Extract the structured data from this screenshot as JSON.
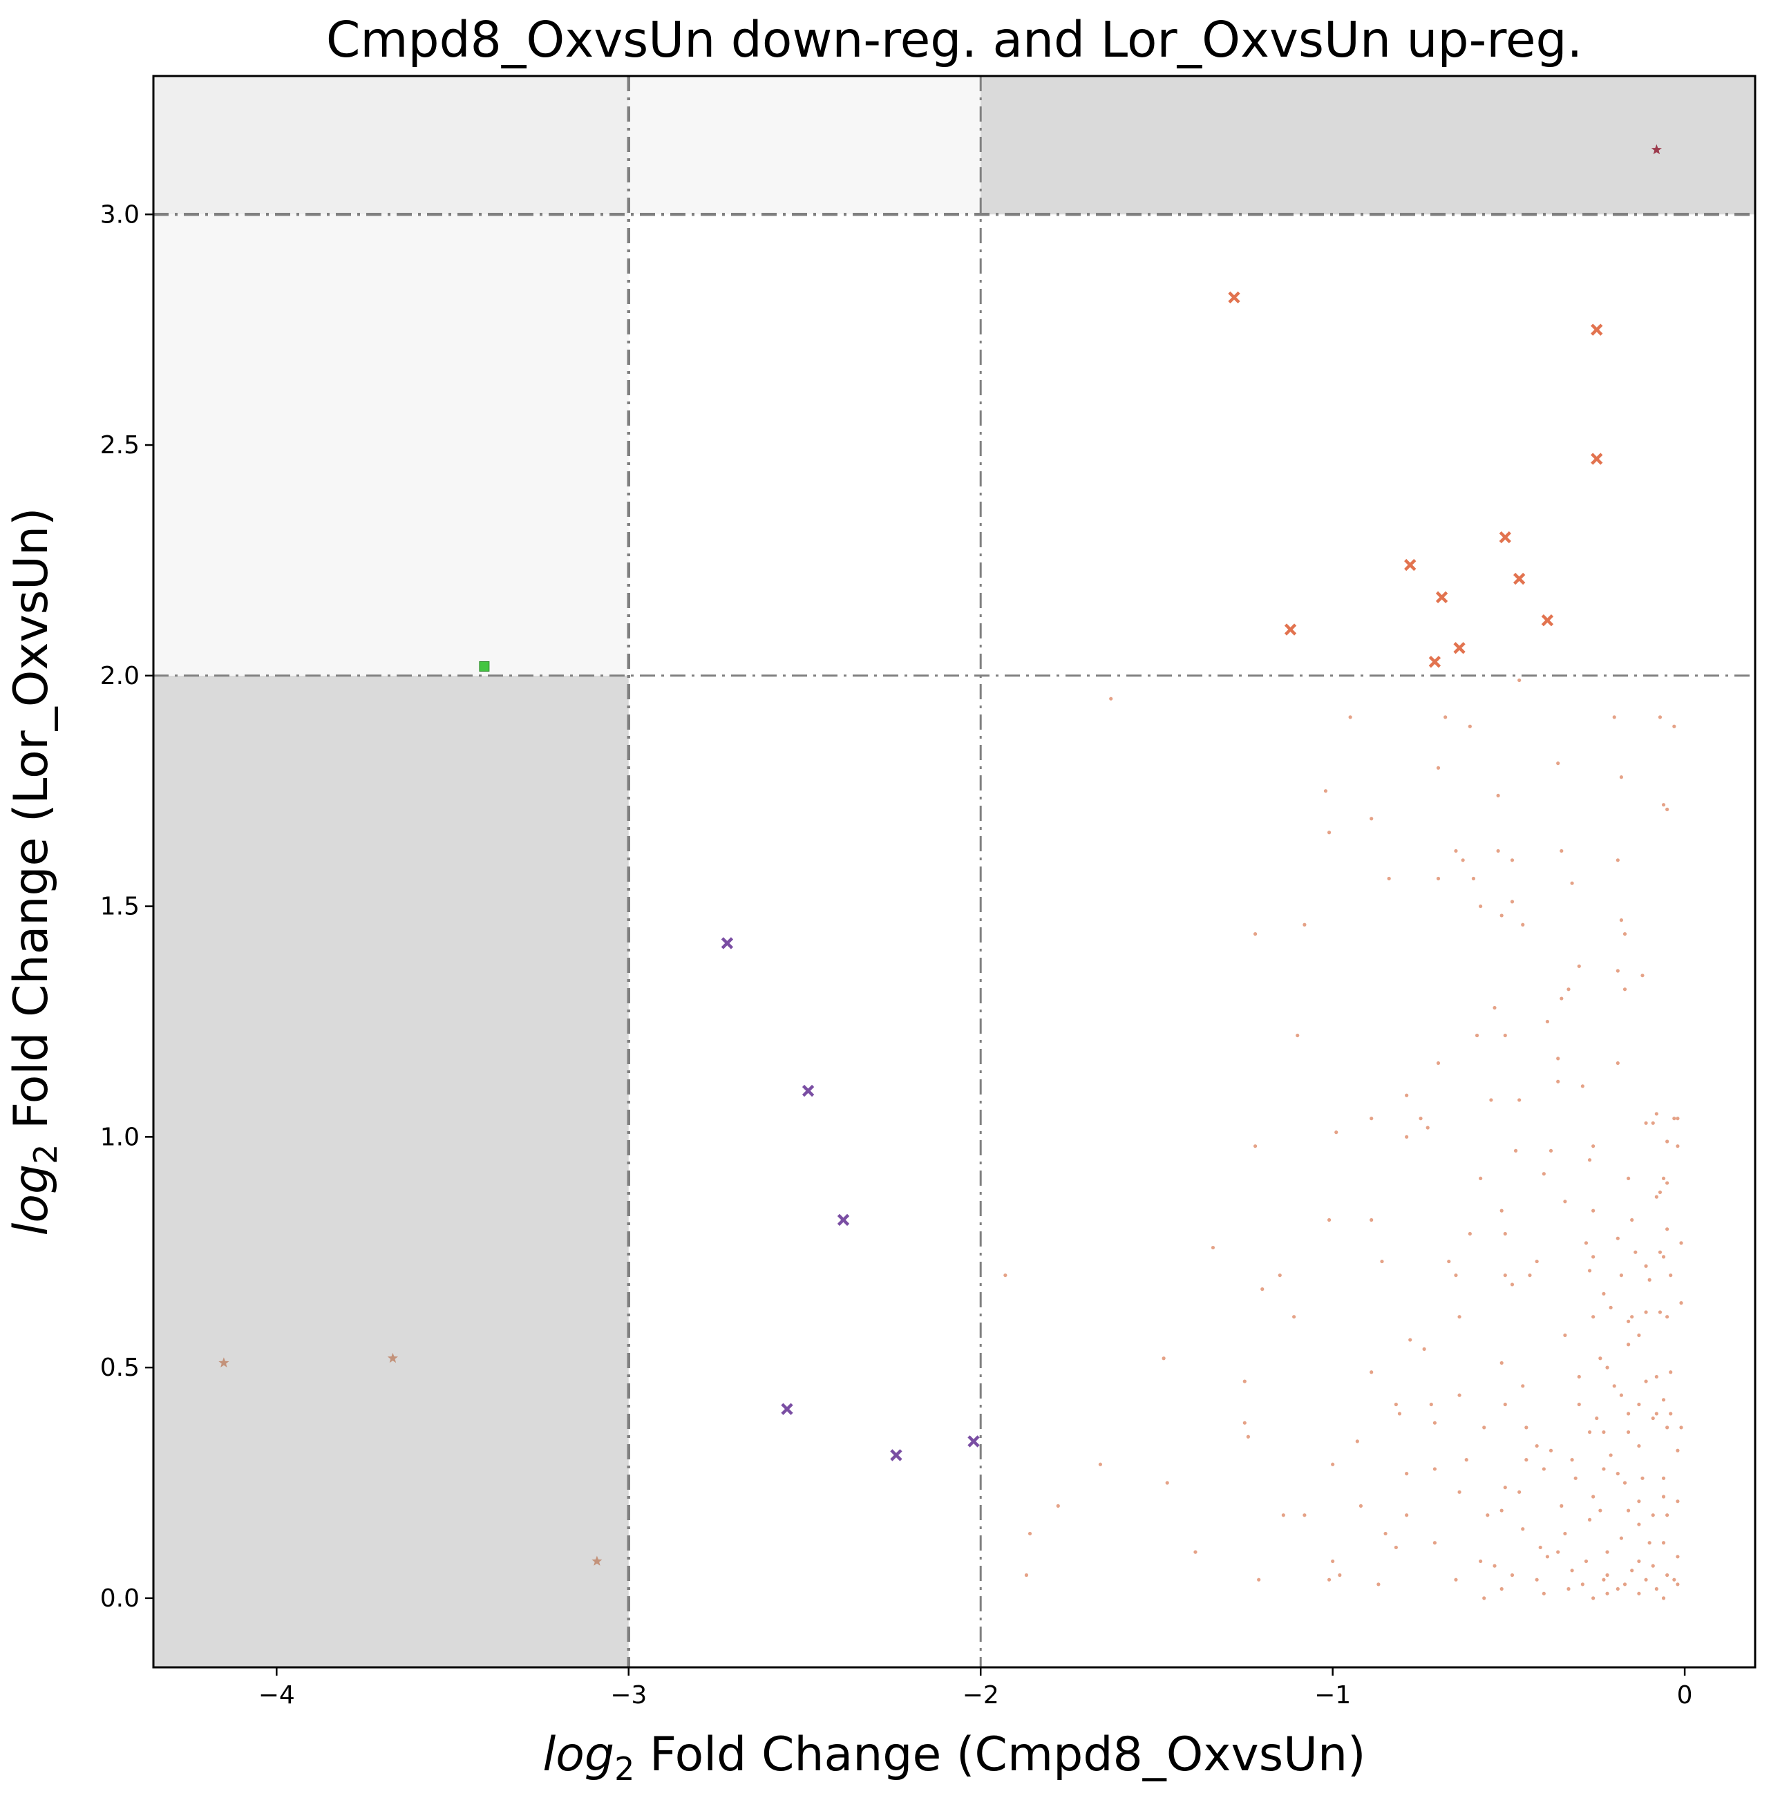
{
  "chart_data": {
    "type": "scatter",
    "title": "Cmpd8_OxvsUn down-reg. and Lor_OxvsUn up-reg.",
    "xlabel": {
      "prefix": "log",
      "sub": "2",
      "rest": " Fold Change (Cmpd8_OxvsUn)"
    },
    "ylabel": {
      "prefix": "log",
      "sub": "2",
      "rest": " Fold Change (Lor_OxvsUn)"
    },
    "xlim": [
      -4.35,
      0.2
    ],
    "ylim": [
      -0.15,
      3.3
    ],
    "xticks": [
      -4,
      -3,
      -2,
      -1,
      0
    ],
    "xtick_labels": [
      "−4",
      "−3",
      "−2",
      "−1",
      "0"
    ],
    "yticks": [
      0.0,
      0.5,
      1.0,
      1.5,
      2.0,
      2.5,
      3.0
    ],
    "ytick_labels": [
      "0.0",
      "0.5",
      "1.0",
      "1.5",
      "2.0",
      "2.5",
      "3.0"
    ],
    "grid": false,
    "threshold_lines": {
      "x": [
        -3,
        -2
      ],
      "y": [
        2,
        3
      ]
    },
    "regions": [
      {
        "x": [
          -4.35,
          -3
        ],
        "y": [
          -0.15,
          2
        ],
        "color": "#dadada"
      },
      {
        "x": [
          -4.35,
          -3
        ],
        "y": [
          2,
          3
        ],
        "color": "#f7f7f7"
      },
      {
        "x": [
          -4.35,
          -3
        ],
        "y": [
          3,
          3.3
        ],
        "color": "#efefef"
      },
      {
        "x": [
          -3,
          -2
        ],
        "y": [
          3,
          3.3
        ],
        "color": "#f7f7f7"
      },
      {
        "x": [
          -2,
          0.2
        ],
        "y": [
          3,
          3.3
        ],
        "color": "#dadada"
      }
    ],
    "series": [
      {
        "marker": "square",
        "color": "#44c541",
        "points": [
          [
            -3.41,
            2.02
          ]
        ]
      },
      {
        "marker": "star",
        "color": "#c3927a",
        "points": [
          [
            -4.15,
            0.51
          ],
          [
            -3.67,
            0.52
          ],
          [
            -3.09,
            0.08
          ]
        ]
      },
      {
        "marker": "x",
        "color": "#7a4ea3",
        "points": [
          [
            -2.72,
            1.42
          ],
          [
            -2.49,
            1.1
          ],
          [
            -2.39,
            0.82
          ],
          [
            -2.55,
            0.41
          ],
          [
            -2.24,
            0.31
          ],
          [
            -2.02,
            0.34
          ]
        ]
      },
      {
        "marker": "x",
        "color": "#e2734f",
        "points": [
          [
            -1.28,
            2.82
          ],
          [
            -0.25,
            2.75
          ],
          [
            -0.25,
            2.47
          ],
          [
            -0.51,
            2.3
          ],
          [
            -0.78,
            2.24
          ],
          [
            -0.47,
            2.21
          ],
          [
            -0.69,
            2.17
          ],
          [
            -0.39,
            2.12
          ],
          [
            -1.12,
            2.1
          ],
          [
            -0.64,
            2.06
          ],
          [
            -0.71,
            2.03
          ]
        ]
      },
      {
        "marker": "star",
        "color": "#9c3a4c",
        "points": [
          [
            -0.08,
            3.14
          ]
        ]
      },
      {
        "marker": "dot",
        "color": "#e09272",
        "points": [
          [
            -1.63,
            1.95
          ],
          [
            -0.95,
            1.91
          ],
          [
            -0.68,
            1.91
          ],
          [
            -0.61,
            1.89
          ],
          [
            -0.47,
            1.99
          ],
          [
            -0.2,
            1.91
          ],
          [
            -0.07,
            1.91
          ],
          [
            -0.03,
            1.89
          ],
          [
            -0.36,
            1.81
          ],
          [
            -0.18,
            1.78
          ],
          [
            -0.7,
            1.8
          ],
          [
            -1.02,
            1.75
          ],
          [
            -0.53,
            1.74
          ],
          [
            -0.06,
            1.72
          ],
          [
            -0.05,
            1.71
          ],
          [
            -0.89,
            1.69
          ],
          [
            -1.01,
            1.66
          ],
          [
            -0.65,
            1.62
          ],
          [
            -0.63,
            1.6
          ],
          [
            -0.53,
            1.62
          ],
          [
            -0.35,
            1.62
          ],
          [
            -0.49,
            1.6
          ],
          [
            -0.19,
            1.6
          ],
          [
            -0.84,
            1.56
          ],
          [
            -0.7,
            1.56
          ],
          [
            -0.6,
            1.56
          ],
          [
            -0.32,
            1.55
          ],
          [
            -0.49,
            1.51
          ],
          [
            -0.58,
            1.5
          ],
          [
            -0.52,
            1.48
          ],
          [
            -0.46,
            1.46
          ],
          [
            -0.18,
            1.47
          ],
          [
            -1.08,
            1.46
          ],
          [
            -1.22,
            1.44
          ],
          [
            -0.17,
            1.44
          ],
          [
            -0.3,
            1.37
          ],
          [
            -0.19,
            1.36
          ],
          [
            -0.12,
            1.35
          ],
          [
            -0.17,
            1.32
          ],
          [
            -0.35,
            1.3
          ],
          [
            -0.33,
            1.32
          ],
          [
            -0.54,
            1.28
          ],
          [
            -0.39,
            1.25
          ],
          [
            -1.1,
            1.22
          ],
          [
            -0.51,
            1.22
          ],
          [
            -0.59,
            1.22
          ],
          [
            -0.36,
            1.17
          ],
          [
            -0.19,
            1.16
          ],
          [
            -0.7,
            1.16
          ],
          [
            -0.36,
            1.12
          ],
          [
            -0.29,
            1.11
          ],
          [
            -0.79,
            1.09
          ],
          [
            -0.55,
            1.08
          ],
          [
            -0.47,
            1.08
          ],
          [
            -0.08,
            1.05
          ],
          [
            -0.03,
            1.04
          ],
          [
            -0.02,
            1.04
          ],
          [
            -0.09,
            1.03
          ],
          [
            -0.75,
            1.04
          ],
          [
            -0.73,
            1.02
          ],
          [
            -0.89,
            1.04
          ],
          [
            -0.11,
            1.03
          ],
          [
            -0.99,
            1.01
          ],
          [
            -0.79,
            1.0
          ],
          [
            -1.22,
            0.98
          ],
          [
            -0.05,
            0.99
          ],
          [
            -0.02,
            0.98
          ],
          [
            -0.48,
            0.97
          ],
          [
            -0.38,
            0.97
          ],
          [
            -0.26,
            0.98
          ],
          [
            -0.27,
            0.95
          ],
          [
            -0.4,
            0.92
          ],
          [
            -0.16,
            0.91
          ],
          [
            -0.06,
            0.91
          ],
          [
            -0.05,
            0.9
          ],
          [
            -0.07,
            0.88
          ],
          [
            -0.08,
            0.87
          ],
          [
            -0.58,
            0.91
          ],
          [
            -0.34,
            0.86
          ],
          [
            -0.26,
            0.84
          ],
          [
            -0.52,
            0.84
          ],
          [
            -1.01,
            0.82
          ],
          [
            -0.89,
            0.82
          ],
          [
            -0.15,
            0.82
          ],
          [
            -0.05,
            0.8
          ],
          [
            -0.19,
            0.78
          ],
          [
            -0.28,
            0.77
          ],
          [
            -0.51,
            0.79
          ],
          [
            -0.61,
            0.79
          ],
          [
            -0.01,
            0.77
          ],
          [
            -1.34,
            0.76
          ],
          [
            -0.07,
            0.75
          ],
          [
            -0.06,
            0.74
          ],
          [
            -0.14,
            0.75
          ],
          [
            -0.26,
            0.74
          ],
          [
            -0.11,
            0.72
          ],
          [
            -0.42,
            0.73
          ],
          [
            -0.67,
            0.73
          ],
          [
            -0.86,
            0.73
          ],
          [
            -0.27,
            0.71
          ],
          [
            -0.04,
            0.7
          ],
          [
            -1.93,
            0.7
          ],
          [
            -1.15,
            0.7
          ],
          [
            -0.65,
            0.7
          ],
          [
            -0.51,
            0.7
          ],
          [
            -0.44,
            0.7
          ],
          [
            -0.18,
            0.7
          ],
          [
            -0.1,
            0.69
          ],
          [
            -1.2,
            0.67
          ],
          [
            -0.49,
            0.68
          ],
          [
            -0.23,
            0.66
          ],
          [
            -0.01,
            0.64
          ],
          [
            -0.15,
            0.61
          ],
          [
            -0.11,
            0.62
          ],
          [
            -0.07,
            0.62
          ],
          [
            -0.05,
            0.61
          ],
          [
            -0.16,
            0.6
          ],
          [
            -0.26,
            0.61
          ],
          [
            -0.21,
            0.63
          ],
          [
            -1.11,
            0.61
          ],
          [
            -0.64,
            0.61
          ],
          [
            -0.34,
            0.57
          ],
          [
            -0.13,
            0.57
          ],
          [
            -0.78,
            0.56
          ],
          [
            -0.16,
            0.55
          ],
          [
            -0.74,
            0.54
          ],
          [
            -1.48,
            0.52
          ],
          [
            -0.24,
            0.52
          ],
          [
            -0.52,
            0.51
          ],
          [
            -0.22,
            0.5
          ],
          [
            -0.08,
            0.48
          ],
          [
            -0.11,
            0.47
          ],
          [
            -0.89,
            0.49
          ],
          [
            -0.04,
            0.49
          ],
          [
            -1.25,
            0.47
          ],
          [
            -0.3,
            0.48
          ],
          [
            -0.2,
            0.46
          ],
          [
            -0.46,
            0.46
          ],
          [
            -0.18,
            0.44
          ],
          [
            -0.64,
            0.44
          ],
          [
            -0.72,
            0.42
          ],
          [
            -0.82,
            0.42
          ],
          [
            -0.06,
            0.43
          ],
          [
            -0.13,
            0.42
          ],
          [
            -0.51,
            0.42
          ],
          [
            -0.3,
            0.42
          ],
          [
            -0.81,
            0.4
          ],
          [
            -0.16,
            0.4
          ],
          [
            -0.08,
            0.4
          ],
          [
            -0.04,
            0.4
          ],
          [
            -0.25,
            0.39
          ],
          [
            -0.09,
            0.39
          ],
          [
            -1.25,
            0.38
          ],
          [
            -0.71,
            0.38
          ],
          [
            -0.45,
            0.37
          ],
          [
            -0.57,
            0.37
          ],
          [
            -0.05,
            0.37
          ],
          [
            -0.01,
            0.37
          ],
          [
            -0.27,
            0.36
          ],
          [
            -0.16,
            0.36
          ],
          [
            -0.23,
            0.36
          ],
          [
            -1.24,
            0.35
          ],
          [
            -0.93,
            0.34
          ],
          [
            -0.42,
            0.33
          ],
          [
            -0.13,
            0.33
          ],
          [
            -0.21,
            0.31
          ],
          [
            -0.02,
            0.32
          ],
          [
            -0.38,
            0.32
          ],
          [
            -0.32,
            0.3
          ],
          [
            -1.0,
            0.29
          ],
          [
            -0.62,
            0.3
          ],
          [
            -0.45,
            0.3
          ],
          [
            -0.71,
            0.28
          ],
          [
            -0.4,
            0.28
          ],
          [
            -0.23,
            0.28
          ],
          [
            -1.66,
            0.29
          ],
          [
            -0.79,
            0.27
          ],
          [
            -0.19,
            0.27
          ],
          [
            -0.12,
            0.26
          ],
          [
            -0.06,
            0.26
          ],
          [
            -0.31,
            0.26
          ],
          [
            -0.17,
            0.25
          ],
          [
            -0.51,
            0.24
          ],
          [
            -1.47,
            0.25
          ],
          [
            -0.64,
            0.23
          ],
          [
            -0.47,
            0.23
          ],
          [
            -0.26,
            0.22
          ],
          [
            -0.06,
            0.22
          ],
          [
            -0.13,
            0.21
          ],
          [
            -0.02,
            0.21
          ],
          [
            -1.78,
            0.2
          ],
          [
            -0.92,
            0.2
          ],
          [
            -0.52,
            0.19
          ],
          [
            -0.35,
            0.2
          ],
          [
            -0.16,
            0.19
          ],
          [
            -0.24,
            0.19
          ],
          [
            -0.09,
            0.18
          ],
          [
            -0.05,
            0.18
          ],
          [
            -1.14,
            0.18
          ],
          [
            -1.08,
            0.18
          ],
          [
            -0.79,
            0.18
          ],
          [
            -0.56,
            0.18
          ],
          [
            -0.27,
            0.17
          ],
          [
            -0.13,
            0.16
          ],
          [
            -0.46,
            0.15
          ],
          [
            -0.85,
            0.14
          ],
          [
            -0.34,
            0.14
          ],
          [
            -0.18,
            0.13
          ],
          [
            -1.86,
            0.14
          ],
          [
            -0.1,
            0.12
          ],
          [
            -0.06,
            0.12
          ],
          [
            -0.71,
            0.12
          ],
          [
            -0.41,
            0.11
          ],
          [
            -0.82,
            0.11
          ],
          [
            -0.22,
            0.1
          ],
          [
            -1.39,
            0.1
          ],
          [
            -0.36,
            0.1
          ],
          [
            -0.39,
            0.09
          ],
          [
            -0.02,
            0.09
          ],
          [
            -0.58,
            0.08
          ],
          [
            -1.0,
            0.08
          ],
          [
            -0.28,
            0.08
          ],
          [
            -0.13,
            0.08
          ],
          [
            -0.54,
            0.07
          ],
          [
            -0.09,
            0.07
          ],
          [
            -0.32,
            0.06
          ],
          [
            -0.15,
            0.06
          ],
          [
            -0.98,
            0.05
          ],
          [
            -1.87,
            0.05
          ],
          [
            -0.49,
            0.05
          ],
          [
            -0.22,
            0.05
          ],
          [
            -0.05,
            0.05
          ],
          [
            -0.65,
            0.04
          ],
          [
            -1.01,
            0.04
          ],
          [
            -1.21,
            0.04
          ],
          [
            -0.42,
            0.04
          ],
          [
            -0.23,
            0.04
          ],
          [
            -0.11,
            0.04
          ],
          [
            -0.03,
            0.04
          ],
          [
            -0.87,
            0.03
          ],
          [
            -0.29,
            0.03
          ],
          [
            -0.17,
            0.03
          ],
          [
            -0.02,
            0.03
          ],
          [
            -0.52,
            0.02
          ],
          [
            -0.33,
            0.02
          ],
          [
            -0.19,
            0.02
          ],
          [
            -0.08,
            0.02
          ],
          [
            -0.4,
            0.01
          ],
          [
            -0.13,
            0.01
          ],
          [
            -0.22,
            0.01
          ],
          [
            -0.57,
            0.0
          ],
          [
            -0.26,
            0.0
          ],
          [
            -0.06,
            0.0
          ]
        ]
      }
    ]
  }
}
